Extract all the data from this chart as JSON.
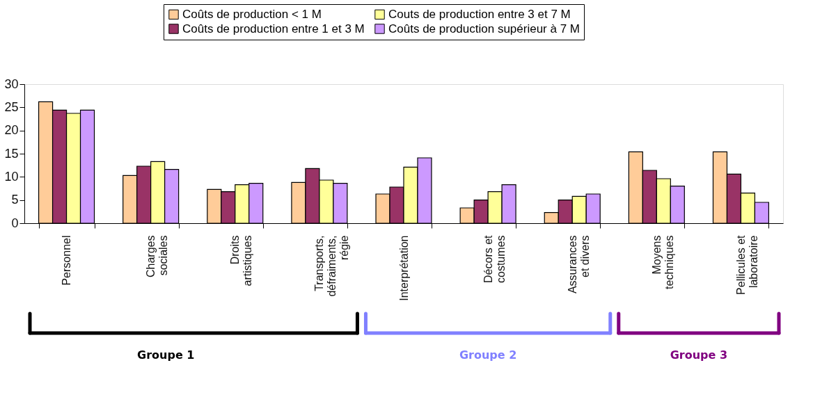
{
  "chart_data": {
    "type": "bar",
    "categories": [
      "Personnel",
      "Charges\nsociales",
      "Droits\nartistiques",
      "Transports,\ndéfraiments,\nrégie",
      "Interprétation",
      "Décors et\ncostumes",
      "Assurances\net divers",
      "Moyens\ntechniques",
      "Pellicules et\nlaboratoire"
    ],
    "series": [
      {
        "name": "Coûts de production < 1 M",
        "color": "#ffcc99",
        "values": [
          26.2,
          10.3,
          7.3,
          8.8,
          6.3,
          3.3,
          2.3,
          15.4,
          15.4
        ]
      },
      {
        "name": "Coûts de production entre 1 et 3 M",
        "color": "#993366",
        "values": [
          24.4,
          12.3,
          6.8,
          11.8,
          7.8,
          5.0,
          5.0,
          11.4,
          10.6
        ]
      },
      {
        "name": "Couts de production entre 3 et 7 M",
        "color": "#ffff99",
        "values": [
          23.7,
          13.3,
          8.3,
          9.3,
          12.1,
          6.8,
          5.8,
          9.6,
          6.5
        ]
      },
      {
        "name": "Coûts de production supérieur à 7 M",
        "color": "#cc99ff",
        "values": [
          24.4,
          11.6,
          8.6,
          8.6,
          14.1,
          8.3,
          6.3,
          8.0,
          4.5
        ]
      }
    ],
    "ylim": [
      0,
      30
    ],
    "yticks": [
      0,
      5,
      10,
      15,
      20,
      25,
      30
    ],
    "grid": false,
    "legend": "top",
    "annotations": [
      "Groupe 1",
      "Groupe 2",
      "Groupe 3"
    ]
  }
}
